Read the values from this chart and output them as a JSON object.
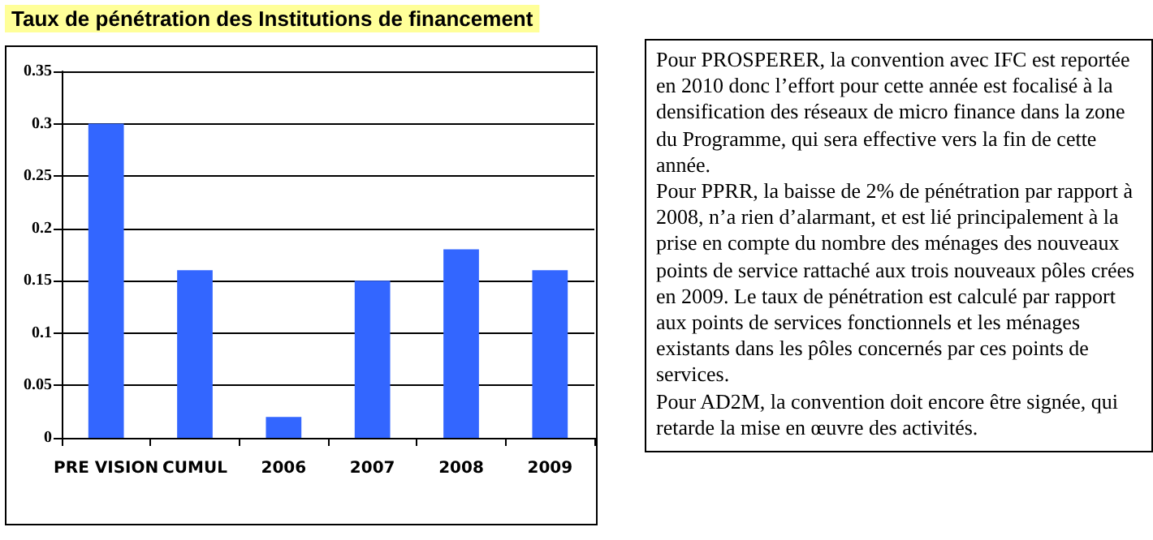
{
  "chart_data": {
    "type": "bar",
    "title": "Taux de pénétration des Institutions de financement",
    "categories": [
      "PRE VISION",
      "CUMUL",
      "2006",
      "2007",
      "2008",
      "2009"
    ],
    "values": [
      0.3,
      0.16,
      0.02,
      0.15,
      0.18,
      0.16
    ],
    "color": "#3366ff",
    "ylim": [
      0,
      0.35
    ],
    "yticks": [
      0,
      0.05,
      0.1,
      0.15,
      0.2,
      0.25,
      0.3,
      0.35
    ],
    "grid": "y",
    "annotations": [
      "Pour PROSPERER, la convention avec IFC est reportée en 2010 donc l’effort pour cette année est focalisé à la densification des réseaux de micro finance dans la zone du Programme, qui sera effective vers la fin de cette année.",
      "Pour PPRR, la baisse de 2% de pénétration par rapport à 2008, n’a rien d’alarmant, et est lié principalement à la prise en compte du nombre des ménages des nouveaux points de service rattaché aux trois nouveaux pôles crées en 2009.  Le taux de pénétration est calculé par rapport aux points de services fonctionnels et les ménages existants dans les pôles concernés par ces points de services.",
      "Pour AD2M, la convention doit encore être signée, qui retarde la mise en œuvre des activités."
    ]
  }
}
